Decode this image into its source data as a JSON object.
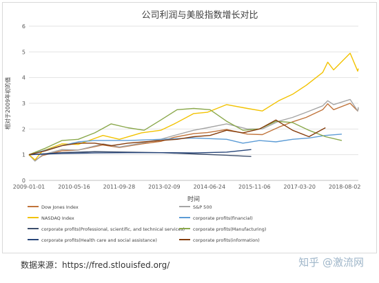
{
  "chart_data": {
    "type": "line",
    "title": "公司利润与美股指数增长对比",
    "xlabel": "时间",
    "ylabel": "相对于2009年初的值",
    "ylim": [
      0,
      6
    ],
    "yticks": [
      0,
      1,
      2,
      3,
      4,
      5,
      6
    ],
    "x_ticks": [
      "2009-01-01",
      "2010-05-16",
      "2011-09-28",
      "2013-02-09",
      "2014-06-24",
      "2015-11-06",
      "2017-03-20",
      "2018-08-02"
    ],
    "xlim": [
      "2009-01-01",
      "2018-12-31"
    ],
    "grid": true,
    "legend_position": "bottom",
    "series": [
      {
        "name": "Dow Jones Index",
        "color": "#c0733a",
        "points": [
          [
            "2009-01-01",
            1.0
          ],
          [
            "2009-03-09",
            0.78
          ],
          [
            "2009-06-01",
            0.97
          ],
          [
            "2010-01-01",
            1.15
          ],
          [
            "2010-07-01",
            1.18
          ],
          [
            "2011-04-01",
            1.38
          ],
          [
            "2011-10-01",
            1.28
          ],
          [
            "2012-06-01",
            1.42
          ],
          [
            "2013-01-01",
            1.52
          ],
          [
            "2013-06-01",
            1.68
          ],
          [
            "2014-01-01",
            1.82
          ],
          [
            "2014-06-01",
            1.86
          ],
          [
            "2015-01-01",
            1.98
          ],
          [
            "2015-08-20",
            1.8
          ],
          [
            "2016-02-01",
            1.78
          ],
          [
            "2016-08-01",
            2.07
          ],
          [
            "2017-01-01",
            2.28
          ],
          [
            "2017-06-01",
            2.45
          ],
          [
            "2017-12-01",
            2.75
          ],
          [
            "2018-01-26",
            2.98
          ],
          [
            "2018-04-01",
            2.75
          ],
          [
            "2018-10-01",
            3.0
          ],
          [
            "2018-12-24",
            2.7
          ],
          [
            "2018-12-31",
            2.8
          ]
        ]
      },
      {
        "name": "S&P 500",
        "color": "#a5a5a5",
        "points": [
          [
            "2009-01-01",
            1.0
          ],
          [
            "2009-03-09",
            0.75
          ],
          [
            "2009-06-01",
            1.0
          ],
          [
            "2010-01-01",
            1.2
          ],
          [
            "2010-07-01",
            1.18
          ],
          [
            "2011-04-01",
            1.42
          ],
          [
            "2011-10-01",
            1.3
          ],
          [
            "2012-06-01",
            1.45
          ],
          [
            "2013-01-01",
            1.6
          ],
          [
            "2013-06-01",
            1.75
          ],
          [
            "2014-01-01",
            1.95
          ],
          [
            "2014-06-01",
            2.05
          ],
          [
            "2015-01-01",
            2.2
          ],
          [
            "2015-08-20",
            2.0
          ],
          [
            "2016-02-01",
            2.0
          ],
          [
            "2016-08-01",
            2.3
          ],
          [
            "2017-01-01",
            2.45
          ],
          [
            "2017-06-01",
            2.65
          ],
          [
            "2017-12-01",
            2.9
          ],
          [
            "2018-01-26",
            3.1
          ],
          [
            "2018-04-01",
            2.95
          ],
          [
            "2018-10-01",
            3.15
          ],
          [
            "2018-12-24",
            2.7
          ],
          [
            "2018-12-31",
            2.85
          ]
        ]
      },
      {
        "name": "NASDAQ Index",
        "color": "#f2c200",
        "points": [
          [
            "2009-01-01",
            1.0
          ],
          [
            "2009-03-09",
            0.8
          ],
          [
            "2009-06-01",
            1.15
          ],
          [
            "2010-01-01",
            1.42
          ],
          [
            "2010-07-01",
            1.4
          ],
          [
            "2011-04-01",
            1.75
          ],
          [
            "2011-10-01",
            1.6
          ],
          [
            "2012-06-01",
            1.85
          ],
          [
            "2013-01-01",
            1.95
          ],
          [
            "2013-06-01",
            2.2
          ],
          [
            "2014-01-01",
            2.6
          ],
          [
            "2014-06-01",
            2.65
          ],
          [
            "2015-01-01",
            2.95
          ],
          [
            "2015-08-20",
            2.8
          ],
          [
            "2016-02-01",
            2.7
          ],
          [
            "2016-08-01",
            3.1
          ],
          [
            "2017-01-01",
            3.35
          ],
          [
            "2017-06-01",
            3.7
          ],
          [
            "2017-12-01",
            4.2
          ],
          [
            "2018-01-26",
            4.6
          ],
          [
            "2018-04-01",
            4.3
          ],
          [
            "2018-10-01",
            4.95
          ],
          [
            "2018-12-24",
            4.25
          ],
          [
            "2018-12-31",
            4.35
          ]
        ]
      },
      {
        "name": "corporate profits(financial)",
        "color": "#5b9bd5",
        "points": [
          [
            "2009-01-01",
            1.0
          ],
          [
            "2010-01-01",
            1.35
          ],
          [
            "2010-07-01",
            1.5
          ],
          [
            "2011-01-01",
            1.55
          ],
          [
            "2012-01-01",
            1.55
          ],
          [
            "2013-01-01",
            1.6
          ],
          [
            "2014-01-01",
            1.65
          ],
          [
            "2015-01-01",
            1.6
          ],
          [
            "2015-07-01",
            1.45
          ],
          [
            "2016-01-01",
            1.55
          ],
          [
            "2016-07-01",
            1.5
          ],
          [
            "2017-01-01",
            1.6
          ],
          [
            "2017-07-01",
            1.65
          ],
          [
            "2018-01-01",
            1.75
          ],
          [
            "2018-07-01",
            1.8
          ]
        ]
      },
      {
        "name": "corporate profits(Professional, scientific, and technical services)",
        "color": "#3c4d6b",
        "points": [
          [
            "2009-01-01",
            1.0
          ],
          [
            "2010-01-01",
            1.08
          ],
          [
            "2011-01-01",
            1.12
          ],
          [
            "2012-01-01",
            1.1
          ],
          [
            "2013-01-01",
            1.08
          ],
          [
            "2014-01-01",
            1.03
          ],
          [
            "2015-01-01",
            0.98
          ],
          [
            "2015-10-01",
            0.93
          ]
        ]
      },
      {
        "name": "corporate profits(Manufacturing)",
        "color": "#8aa84b",
        "points": [
          [
            "2009-01-01",
            1.0
          ],
          [
            "2009-07-01",
            1.25
          ],
          [
            "2010-01-01",
            1.55
          ],
          [
            "2010-07-01",
            1.6
          ],
          [
            "2011-01-01",
            1.85
          ],
          [
            "2011-07-01",
            2.2
          ],
          [
            "2012-01-01",
            2.05
          ],
          [
            "2012-07-01",
            1.95
          ],
          [
            "2013-01-01",
            2.35
          ],
          [
            "2013-07-01",
            2.75
          ],
          [
            "2014-01-01",
            2.8
          ],
          [
            "2014-07-01",
            2.75
          ],
          [
            "2015-01-01",
            2.3
          ],
          [
            "2015-07-01",
            1.95
          ],
          [
            "2016-01-01",
            2.0
          ],
          [
            "2016-07-01",
            2.3
          ],
          [
            "2017-01-01",
            2.25
          ],
          [
            "2017-07-01",
            1.95
          ],
          [
            "2018-01-01",
            1.7
          ],
          [
            "2018-07-01",
            1.55
          ]
        ]
      },
      {
        "name": "corporate profits(Health care and social assistance)",
        "color": "#264478",
        "points": [
          [
            "2009-01-01",
            1.0
          ],
          [
            "2010-01-01",
            1.05
          ],
          [
            "2011-01-01",
            1.07
          ],
          [
            "2012-01-01",
            1.08
          ],
          [
            "2013-01-01",
            1.08
          ],
          [
            "2014-01-01",
            1.07
          ],
          [
            "2015-01-01",
            1.1
          ],
          [
            "2015-10-01",
            1.2
          ]
        ]
      },
      {
        "name": "corporate profits(information)",
        "color": "#843c0c",
        "points": [
          [
            "2009-01-01",
            1.0
          ],
          [
            "2009-07-01",
            1.15
          ],
          [
            "2010-01-01",
            1.35
          ],
          [
            "2010-07-01",
            1.45
          ],
          [
            "2011-01-01",
            1.45
          ],
          [
            "2011-07-01",
            1.35
          ],
          [
            "2012-01-01",
            1.45
          ],
          [
            "2012-07-01",
            1.5
          ],
          [
            "2013-01-01",
            1.55
          ],
          [
            "2013-07-01",
            1.6
          ],
          [
            "2014-01-01",
            1.7
          ],
          [
            "2014-07-01",
            1.75
          ],
          [
            "2015-01-01",
            1.95
          ],
          [
            "2015-07-01",
            1.85
          ],
          [
            "2016-01-01",
            2.0
          ],
          [
            "2016-07-01",
            2.35
          ],
          [
            "2017-01-01",
            1.95
          ],
          [
            "2017-07-01",
            1.7
          ],
          [
            "2018-01-01",
            2.05
          ]
        ]
      }
    ]
  },
  "source_text": "数据来源：https://fred.stlouisfed.org/",
  "watermark": "知乎 @激流网"
}
